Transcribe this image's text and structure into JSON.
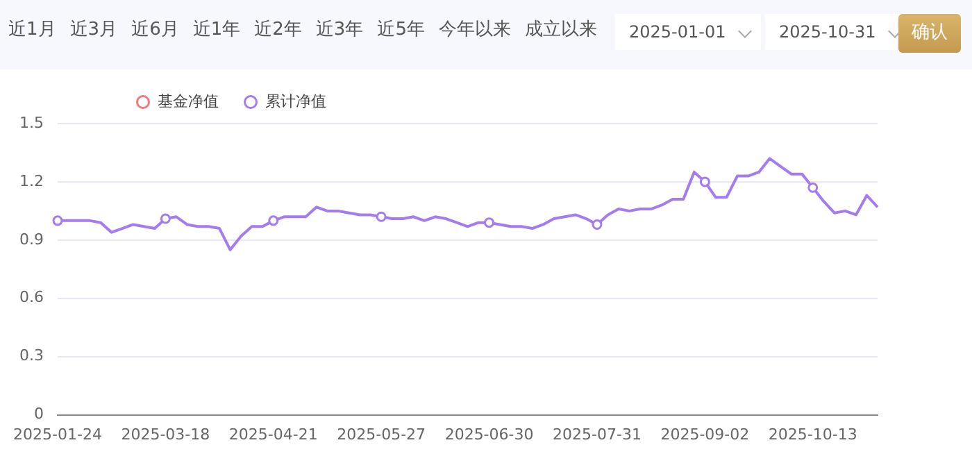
{
  "chart_data": {
    "type": "line",
    "annotations": [
      "近1月",
      "近3月",
      "近6月",
      "近1年",
      "近2年",
      "近3年",
      "近5年",
      "今年以来",
      "成立以来",
      "2025-01-01",
      "2025-10-31",
      "确认"
    ],
    "categories": [
      "2025-01-24",
      null,
      null,
      null,
      null,
      null,
      null,
      null,
      null,
      null,
      "2025-03-18",
      null,
      null,
      null,
      null,
      null,
      null,
      null,
      null,
      null,
      "2025-04-21",
      null,
      null,
      null,
      null,
      null,
      null,
      null,
      null,
      null,
      "2025-05-27",
      null,
      null,
      null,
      null,
      null,
      null,
      null,
      null,
      null,
      "2025-06-30",
      null,
      null,
      null,
      null,
      null,
      null,
      null,
      null,
      null,
      "2025-07-31",
      null,
      null,
      null,
      null,
      null,
      null,
      null,
      null,
      null,
      "2025-09-02",
      null,
      null,
      null,
      null,
      null,
      null,
      null,
      null,
      null,
      "2025-10-13",
      null,
      null,
      null,
      null,
      null,
      null
    ],
    "series": [
      {
        "name": "基金净值",
        "color": "#f07a80",
        "values": [
          null,
          null,
          null,
          null,
          null,
          null,
          null,
          null,
          null,
          null,
          null,
          null,
          null,
          null,
          null,
          null,
          null,
          null,
          null,
          null,
          null,
          null,
          null,
          null,
          null,
          null,
          null,
          null,
          null,
          null,
          null,
          null,
          null,
          null,
          null,
          null,
          null,
          null,
          null,
          null,
          null,
          null,
          null,
          null,
          null,
          null,
          null,
          null,
          null,
          null,
          null,
          null,
          null,
          null,
          null,
          null,
          null,
          null,
          null,
          null,
          null,
          null,
          null,
          null,
          null,
          null,
          null,
          null,
          null,
          null,
          null,
          null,
          null,
          null,
          null,
          null,
          null
        ]
      },
      {
        "name": "累计净值",
        "color": "#a57cf0",
        "values": [
          1.0,
          1.0,
          1.0,
          1.0,
          0.99,
          0.94,
          0.96,
          0.98,
          0.97,
          0.96,
          1.01,
          1.02,
          0.98,
          0.97,
          0.97,
          0.96,
          0.85,
          0.92,
          0.97,
          0.97,
          1.0,
          1.02,
          1.02,
          1.02,
          1.07,
          1.05,
          1.05,
          1.04,
          1.03,
          1.03,
          1.02,
          1.01,
          1.01,
          1.02,
          1.0,
          1.02,
          1.01,
          0.99,
          0.97,
          0.99,
          0.99,
          0.98,
          0.97,
          0.97,
          0.96,
          0.98,
          1.01,
          1.02,
          1.03,
          1.01,
          0.98,
          1.03,
          1.06,
          1.05,
          1.06,
          1.06,
          1.08,
          1.11,
          1.11,
          1.25,
          1.2,
          1.12,
          1.12,
          1.23,
          1.23,
          1.25,
          1.32,
          1.28,
          1.24,
          1.24,
          1.17,
          1.1,
          1.04,
          1.05,
          1.03,
          1.13,
          1.07
        ]
      }
    ],
    "ylim": [
      0,
      1.5
    ],
    "yticks": [
      0,
      0.3,
      0.6,
      0.9,
      1.2,
      1.5
    ],
    "grid": "y",
    "legend": "top left",
    "line_style": "solid"
  }
}
